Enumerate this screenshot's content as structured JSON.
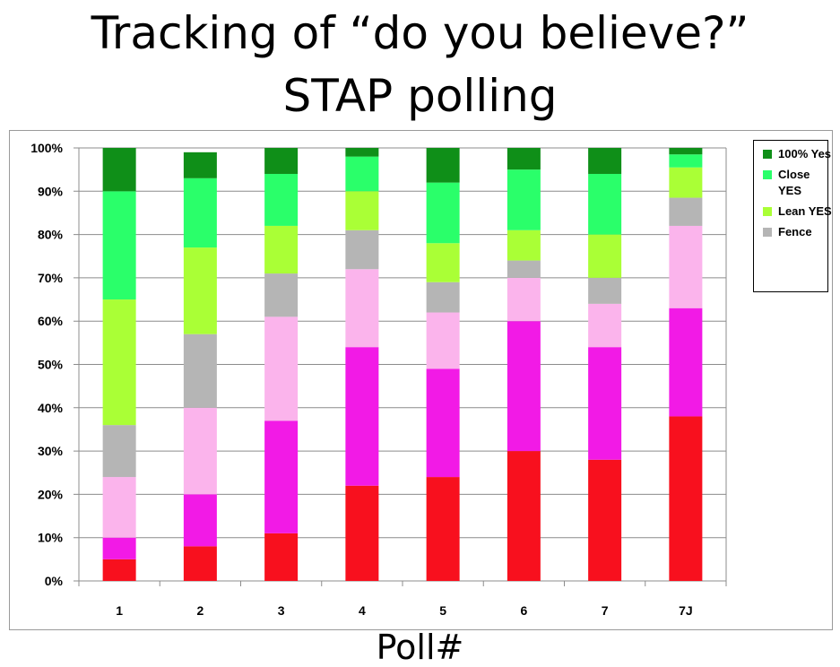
{
  "slide": {
    "title_line1": "Tracking of “do you believe?”",
    "title_line2": "STAP polling"
  },
  "chart_data": {
    "type": "bar",
    "stacked": true,
    "title": "Tracking of “do you believe?” STAP polling",
    "xlabel": "Poll#",
    "ylabel": "",
    "ylim": [
      0,
      100
    ],
    "y_ticks": [
      "0%",
      "10%",
      "20%",
      "30%",
      "40%",
      "50%",
      "60%",
      "70%",
      "80%",
      "90%",
      "100%"
    ],
    "grid": true,
    "legend_position": "top-right",
    "categories": [
      "1",
      "2",
      "3",
      "4",
      "5",
      "6",
      "7",
      "7J"
    ],
    "series": [
      {
        "key": "red",
        "color": "#f8101e",
        "values": [
          5,
          8,
          11,
          22,
          24,
          30,
          28,
          38
        ]
      },
      {
        "key": "magenta",
        "color": "#f21ae6",
        "values": [
          5,
          12,
          26,
          32,
          25,
          30,
          26,
          25
        ]
      },
      {
        "key": "pink",
        "color": "#fbb4ec",
        "values": [
          14,
          20,
          24,
          18,
          13,
          10,
          10,
          19
        ]
      },
      {
        "name": "Fence",
        "color": "#b5b5b5",
        "values": [
          12,
          17,
          10,
          9,
          7,
          4,
          6,
          6.5
        ]
      },
      {
        "name": "Lean YES",
        "color": "#aaff36",
        "values": [
          29,
          20,
          11,
          9,
          9,
          7,
          10,
          7
        ]
      },
      {
        "name": "Close YES",
        "color": "#2aff6a",
        "values": [
          25,
          16,
          12,
          8,
          14,
          14,
          14,
          3
        ]
      },
      {
        "name": "100% Yes",
        "color": "#0f8f18",
        "values": [
          10,
          6,
          6,
          2,
          8,
          5,
          6,
          1.5
        ]
      }
    ],
    "legend": [
      {
        "label": "100% Yes",
        "color": "#0f8f18"
      },
      {
        "label": "Close YES",
        "color": "#2aff6a"
      },
      {
        "label": "Lean YES",
        "color": "#aaff36"
      },
      {
        "label": "Fence",
        "color": "#b5b5b5"
      }
    ]
  }
}
